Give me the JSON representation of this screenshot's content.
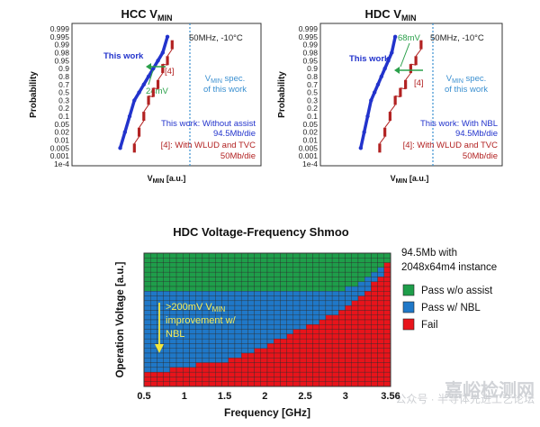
{
  "chart_data": [
    {
      "type": "scatter",
      "title": "HCC V",
      "title_sub": "MIN",
      "ylabel": "Probability",
      "xlabel": "V",
      "xlabel_sub": "MIN",
      "xlabel_unit": " [a.u.]",
      "yticks": [
        "0.999",
        "0.995",
        "0.99",
        "0.98",
        "0.95",
        "0.9",
        "0.8",
        "0.7",
        "0.5",
        "0.3",
        "0.2",
        "0.1",
        "0.05",
        "0.02",
        "0.01",
        "0.005",
        "0.001",
        "1e-4"
      ],
      "condition": "50MHz, -10°C",
      "spec_label_line1": "V",
      "spec_label_sub": "MIN",
      "spec_label_line1_rest": " spec.",
      "spec_label_line2": "of this work",
      "series": [
        {
          "name": "This work",
          "color": "#2233cc",
          "x": [
            0.0,
            0.1,
            0.2,
            0.3,
            0.4,
            0.5,
            0.6,
            0.7,
            0.8,
            0.9,
            1.0
          ],
          "y": [
            0.005,
            0.02,
            0.1,
            0.3,
            0.5,
            0.7,
            0.8,
            0.9,
            0.95,
            0.98,
            0.995
          ]
        },
        {
          "name": "[4]",
          "color": "#b22222",
          "x": [
            0.3,
            0.4,
            0.5,
            0.6,
            0.7,
            0.8,
            0.9,
            1.0,
            1.1
          ],
          "y": [
            0.005,
            0.02,
            0.1,
            0.3,
            0.5,
            0.7,
            0.9,
            0.95,
            0.99
          ]
        }
      ],
      "delta_label": "24mV",
      "note_blue_lines": [
        "This work: Without assist",
        "94.5Mb/die"
      ],
      "note_red_lines": [
        "[4]: With WLUD and TVC",
        "50Mb/die"
      ]
    },
    {
      "type": "scatter",
      "title": "HDC V",
      "title_sub": "MIN",
      "ylabel": "Probability",
      "xlabel": "V",
      "xlabel_sub": "MIN",
      "xlabel_unit": " [a.u.]",
      "yticks": [
        "0.999",
        "0.995",
        "0.99",
        "0.98",
        "0.95",
        "0.9",
        "0.8",
        "0.7",
        "0.5",
        "0.3",
        "0.2",
        "0.1",
        "0.05",
        "0.02",
        "0.01",
        "0.005",
        "0.001",
        "1e-4"
      ],
      "condition": "50MHz, -10°C",
      "spec_label_line1": "V",
      "spec_label_sub": "MIN",
      "spec_label_line1_rest": " spec.",
      "spec_label_line2": "of this work",
      "series": [
        {
          "name": "This work",
          "color": "#2233cc",
          "x": [
            0.0,
            0.1,
            0.2,
            0.3,
            0.4,
            0.5,
            0.6,
            0.7,
            0.8,
            0.9,
            1.0
          ],
          "y": [
            0.005,
            0.02,
            0.1,
            0.3,
            0.5,
            0.7,
            0.8,
            0.9,
            0.95,
            0.98,
            0.995
          ]
        },
        {
          "name": "[4]",
          "color": "#b22222",
          "x": [
            0.55,
            0.7,
            0.85,
            1.0,
            1.15,
            1.3,
            1.45,
            1.6,
            1.75
          ],
          "y": [
            0.005,
            0.02,
            0.1,
            0.3,
            0.5,
            0.7,
            0.9,
            0.95,
            0.99
          ]
        }
      ],
      "delta_label": "68mV",
      "note_blue_lines": [
        "This work: With NBL",
        "94.5Mb/die"
      ],
      "note_red_lines": [
        "[4]: With WLUD and TVC",
        "50Mb/die"
      ]
    },
    {
      "type": "heatmap",
      "title": "HDC Voltage-Frequency Shmoo",
      "xlabel": "Frequency [GHz]",
      "ylabel": "Operation Voltage [a.u.]",
      "xticks": [
        "0.5",
        "1",
        "1.5",
        "2",
        "2.5",
        "3",
        "3.56"
      ],
      "xlim": [
        0.5,
        3.56
      ],
      "rows": 28,
      "cols": 38,
      "pass_wo_assist_boundary_row": [
        8,
        8,
        8,
        8,
        8,
        8,
        8,
        8,
        8,
        8,
        8,
        8,
        8,
        8,
        8,
        8,
        8,
        8,
        8,
        8,
        8,
        8,
        8,
        8,
        8,
        8,
        8,
        8,
        8,
        8,
        8,
        7,
        7,
        6,
        5,
        4,
        3,
        2
      ],
      "pass_nbl_boundary_row": [
        3,
        3,
        3,
        3,
        4,
        4,
        4,
        4,
        5,
        5,
        5,
        5,
        5,
        6,
        6,
        7,
        7,
        8,
        8,
        9,
        10,
        10,
        11,
        12,
        12,
        13,
        13,
        14,
        15,
        15,
        16,
        17,
        18,
        19,
        20,
        22,
        23,
        26
      ],
      "legend": [
        {
          "label": "Pass w/o assist",
          "color": "#1e9e4a"
        },
        {
          "label": "Pass w/ NBL",
          "color": "#1f78c8"
        },
        {
          "label": "Fail",
          "color": "#e8141b"
        }
      ],
      "info_lines": [
        "94.5Mb with",
        "2048x64m4 instance"
      ],
      "annotation_lines": [
        ">200mV V",
        "improvement w/",
        "NBL"
      ],
      "annotation_sub": "MIN"
    }
  ],
  "watermark": {
    "line1": "嘉峪检测网",
    "line2": "公众号 · 半导体先进工艺论坛"
  }
}
